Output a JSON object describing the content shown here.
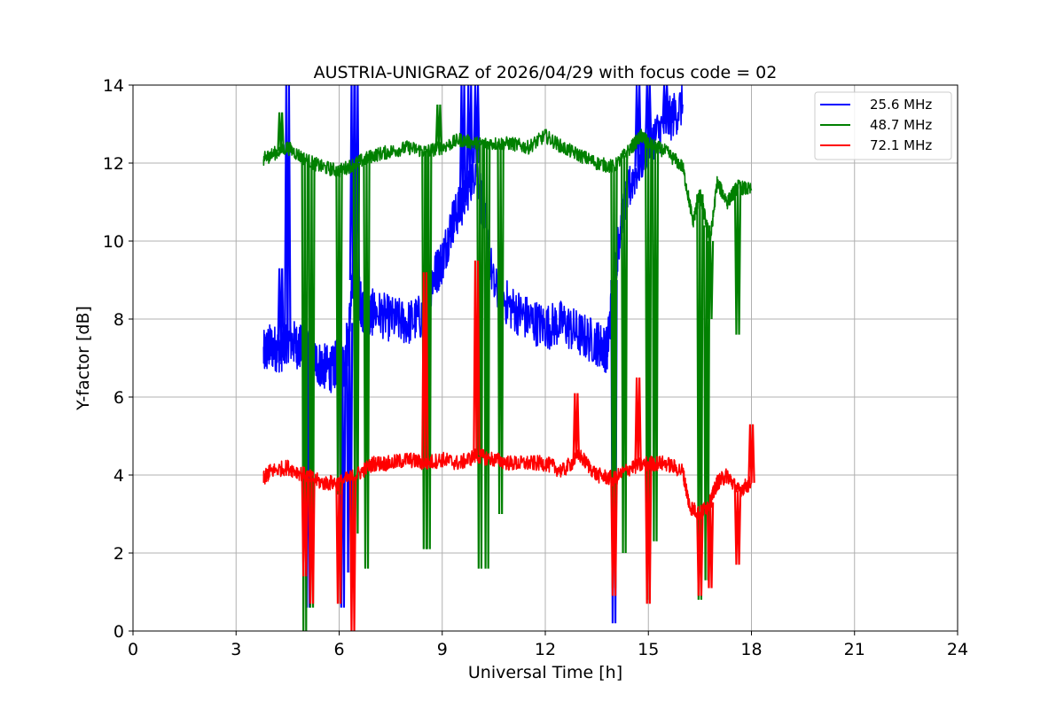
{
  "chart_data": {
    "type": "line",
    "title": "AUSTRIA-UNIGRAZ of 2026/04/29 with focus code = 02",
    "xlabel": "Universal Time [h]",
    "ylabel": "Y-factor [dB]",
    "xlim": [
      0,
      24
    ],
    "ylim": [
      0,
      14
    ],
    "xticks": [
      "0",
      "3",
      "6",
      "9",
      "12",
      "15",
      "18",
      "21",
      "24"
    ],
    "yticks": [
      "0",
      "2",
      "4",
      "6",
      "8",
      "10",
      "12",
      "14"
    ],
    "grid": true,
    "legend_position": "top-right",
    "series": [
      {
        "name": "25.6 MHz",
        "color": "#0000ff",
        "x": [
          3.8,
          4.0,
          4.3,
          4.5,
          4.8,
          5.0,
          5.2,
          5.5,
          5.8,
          6.0,
          6.2,
          6.4,
          6.6,
          6.8,
          7.0,
          7.5,
          8.0,
          8.5,
          8.7,
          9.0,
          9.3,
          9.6,
          10.0,
          10.5,
          11.0,
          11.5,
          12.0,
          12.5,
          13.0,
          13.5,
          13.8,
          14.0,
          14.2,
          14.5,
          15.0,
          15.5,
          16.0
        ],
        "y": [
          7.1,
          7.3,
          7.2,
          7.5,
          7.3,
          7.2,
          7.0,
          6.8,
          6.7,
          7.0,
          6.8,
          9.0,
          8.5,
          8.0,
          8.2,
          8.0,
          7.9,
          8.1,
          9.0,
          9.5,
          10.5,
          11.0,
          12.0,
          8.8,
          8.3,
          8.0,
          7.8,
          7.9,
          7.6,
          7.4,
          7.2,
          9.0,
          10.5,
          11.5,
          12.5,
          13.0,
          13.5
        ],
        "spikes": [
          [
            4.5,
            14.0
          ],
          [
            4.3,
            9.3
          ],
          [
            6.4,
            14.0
          ],
          [
            6.5,
            14.0
          ],
          [
            9.6,
            14.0
          ],
          [
            9.8,
            14.0
          ],
          [
            10.0,
            14.0
          ],
          [
            14.7,
            14.0
          ],
          [
            15.0,
            14.0
          ],
          [
            15.5,
            14.0
          ],
          [
            5.1,
            0.6
          ],
          [
            6.1,
            0.6
          ],
          [
            6.3,
            1.5
          ],
          [
            14.0,
            0.2
          ]
        ]
      },
      {
        "name": "48.7 MHz",
        "color": "#008000",
        "x": [
          3.8,
          4.0,
          4.5,
          5.0,
          5.5,
          6.0,
          6.5,
          7.0,
          7.5,
          8.0,
          8.5,
          9.0,
          9.5,
          10.0,
          10.5,
          11.0,
          11.5,
          12.0,
          12.5,
          13.0,
          13.5,
          14.0,
          14.5,
          14.8,
          15.0,
          15.5,
          16.0,
          16.3,
          16.5,
          16.8,
          17.0,
          17.3,
          17.6,
          18.0
        ],
        "y": [
          12.1,
          12.2,
          12.4,
          12.1,
          11.9,
          11.8,
          12.0,
          12.2,
          12.3,
          12.4,
          12.3,
          12.4,
          12.6,
          12.5,
          12.5,
          12.5,
          12.4,
          12.7,
          12.4,
          12.2,
          12.0,
          11.9,
          12.4,
          12.7,
          12.5,
          12.3,
          11.9,
          10.5,
          11.2,
          10.0,
          11.5,
          11.0,
          11.4,
          11.3
        ],
        "spikes": [
          [
            4.3,
            13.3
          ],
          [
            8.9,
            13.5
          ],
          [
            5.0,
            0.0
          ],
          [
            5.2,
            0.6
          ],
          [
            6.0,
            3.5
          ],
          [
            6.5,
            2.5
          ],
          [
            6.8,
            1.6
          ],
          [
            8.5,
            2.1
          ],
          [
            8.6,
            2.1
          ],
          [
            10.1,
            1.6
          ],
          [
            10.3,
            1.6
          ],
          [
            10.7,
            3.0
          ],
          [
            14.0,
            1.1
          ],
          [
            14.3,
            2.0
          ],
          [
            15.0,
            0.8
          ],
          [
            15.2,
            2.3
          ],
          [
            16.5,
            0.8
          ],
          [
            16.7,
            1.3
          ],
          [
            17.6,
            7.6
          ],
          [
            16.8,
            8.0
          ]
        ]
      },
      {
        "name": "72.1 MHz",
        "color": "#ff0000",
        "x": [
          3.8,
          4.0,
          4.5,
          5.0,
          5.5,
          6.0,
          6.5,
          7.0,
          7.5,
          8.0,
          8.5,
          9.0,
          9.5,
          10.0,
          10.5,
          11.0,
          11.5,
          12.0,
          12.5,
          13.0,
          13.5,
          14.0,
          14.5,
          15.0,
          15.5,
          16.0,
          16.2,
          16.5,
          16.8,
          17.0,
          17.3,
          17.6,
          18.0
        ],
        "y": [
          3.9,
          4.1,
          4.2,
          4.0,
          3.8,
          3.8,
          4.0,
          4.3,
          4.3,
          4.4,
          4.3,
          4.4,
          4.3,
          4.5,
          4.4,
          4.3,
          4.3,
          4.3,
          4.1,
          4.5,
          4.0,
          3.9,
          4.2,
          4.3,
          4.3,
          4.1,
          3.2,
          3.0,
          3.3,
          3.8,
          4.0,
          3.6,
          3.8
        ],
        "spikes": [
          [
            8.5,
            9.2
          ],
          [
            10.0,
            9.5
          ],
          [
            12.9,
            6.1
          ],
          [
            14.7,
            6.5
          ],
          [
            18.0,
            5.3
          ],
          [
            5.0,
            1.4
          ],
          [
            5.2,
            0.7
          ],
          [
            6.0,
            0.7
          ],
          [
            6.4,
            0.0
          ],
          [
            14.0,
            0.9
          ],
          [
            15.0,
            0.7
          ],
          [
            16.5,
            0.9
          ],
          [
            16.8,
            1.1
          ],
          [
            17.6,
            1.7
          ]
        ]
      }
    ]
  }
}
